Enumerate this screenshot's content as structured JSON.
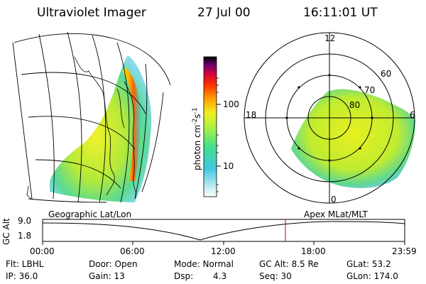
{
  "header": {
    "title": "Ultraviolet Imager",
    "date": "27 Jul 00",
    "time": "16:11:01 UT"
  },
  "colorbar": {
    "label": "photon cm",
    "label_exp1": "-2",
    "label_mid": "s",
    "label_exp2": "-1",
    "tick_high": "100",
    "tick_low": "10",
    "colors": [
      "#ffffff",
      "#b8e8f0",
      "#40c8e0",
      "#40e090",
      "#90f040",
      "#e8f020",
      "#ffb000",
      "#ff5000",
      "#e00020",
      "#a00060",
      "#500070",
      "#000000"
    ]
  },
  "left_panel": {
    "caption": "Geographic Lat/Lon"
  },
  "right_panel": {
    "caption": "Apex MLat/MLT",
    "mlt_labels": {
      "top": "12",
      "left": "18",
      "right": "6",
      "bottom": "0"
    },
    "lat_labels": [
      "60",
      "70",
      "80"
    ]
  },
  "timeline": {
    "ylabel": "GC Alt",
    "yticks": [
      "9.0",
      "1.8"
    ],
    "xticks": [
      "00:00",
      "06:00",
      "12:00",
      "18:00",
      "23:59"
    ]
  },
  "info": {
    "flt": "Flt: LBHL",
    "ip": "IP: 36.0",
    "door": "Door: Open",
    "gain": "Gain: 13",
    "mode": "Mode: Normal",
    "dsp_label": "Dsp:",
    "dsp_value": "4.3",
    "gcalt": "GC Alt: 8.5 Re",
    "seq": "Seq: 30",
    "glat": "GLat: 53.2",
    "glon": "GLon: 174.0"
  }
}
